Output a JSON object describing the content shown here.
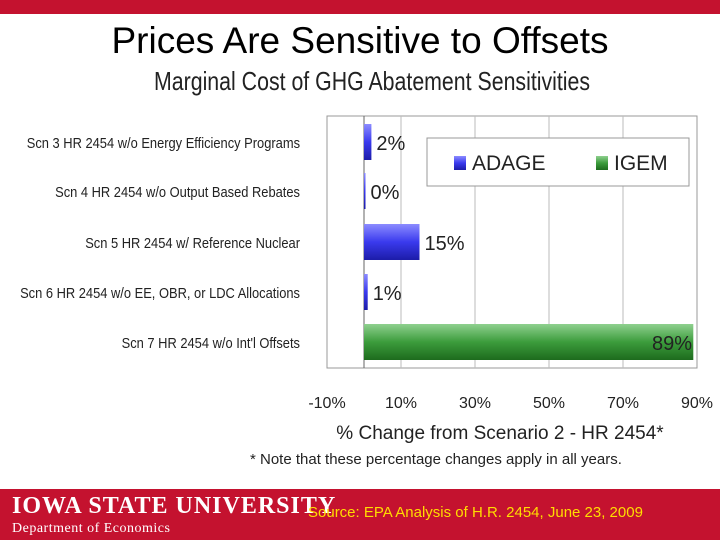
{
  "slide": {
    "title": "Prices Are Sensitive to Offsets",
    "footnote": "* Note that these percentage changes apply in all years.",
    "source": "Source: EPA Analysis of H.R. 2454, June 23, 2009",
    "logo_text": "IOWA STATE UNIVERSITY",
    "department": "Department of Economics"
  },
  "colors": {
    "brand": "#c4122f",
    "adage": "#3a3aee",
    "igem": "#2e8b2e",
    "source_text": "#ffdd00"
  },
  "chart_data": {
    "type": "bar",
    "title": "Marginal Cost of GHG Abatement Sensitivities",
    "xlabel": "% Change from Scenario 2 - HR 2454*",
    "ylabel": "",
    "xlim": [
      -10,
      90
    ],
    "xticks": [
      -10,
      10,
      30,
      50,
      70,
      90
    ],
    "xtick_labels": [
      "-10%",
      "10%",
      "30%",
      "50%",
      "70%",
      "90%"
    ],
    "grid": true,
    "legend_position": "top-right",
    "categories": [
      "Scn 3 HR 2454 w/o Energy Efficiency Programs",
      "Scn 4 HR 2454 w/o Output Based Rebates",
      "Scn 5 HR 2454 w/ Reference Nuclear",
      "Scn 6 HR 2454 w/o EE, OBR, or LDC Allocations",
      "Scn 7 HR 2454 w/o Int'l Offsets"
    ],
    "values": [
      2,
      0,
      15,
      1,
      89
    ],
    "value_labels": [
      "2%",
      "0%",
      "15%",
      "1%",
      "89%"
    ],
    "series_model": [
      "ADAGE",
      "ADAGE",
      "ADAGE",
      "ADAGE",
      "IGEM"
    ],
    "legend": [
      {
        "name": "ADAGE",
        "color": "#3a3aee"
      },
      {
        "name": "IGEM",
        "color": "#2e8b2e"
      }
    ]
  }
}
